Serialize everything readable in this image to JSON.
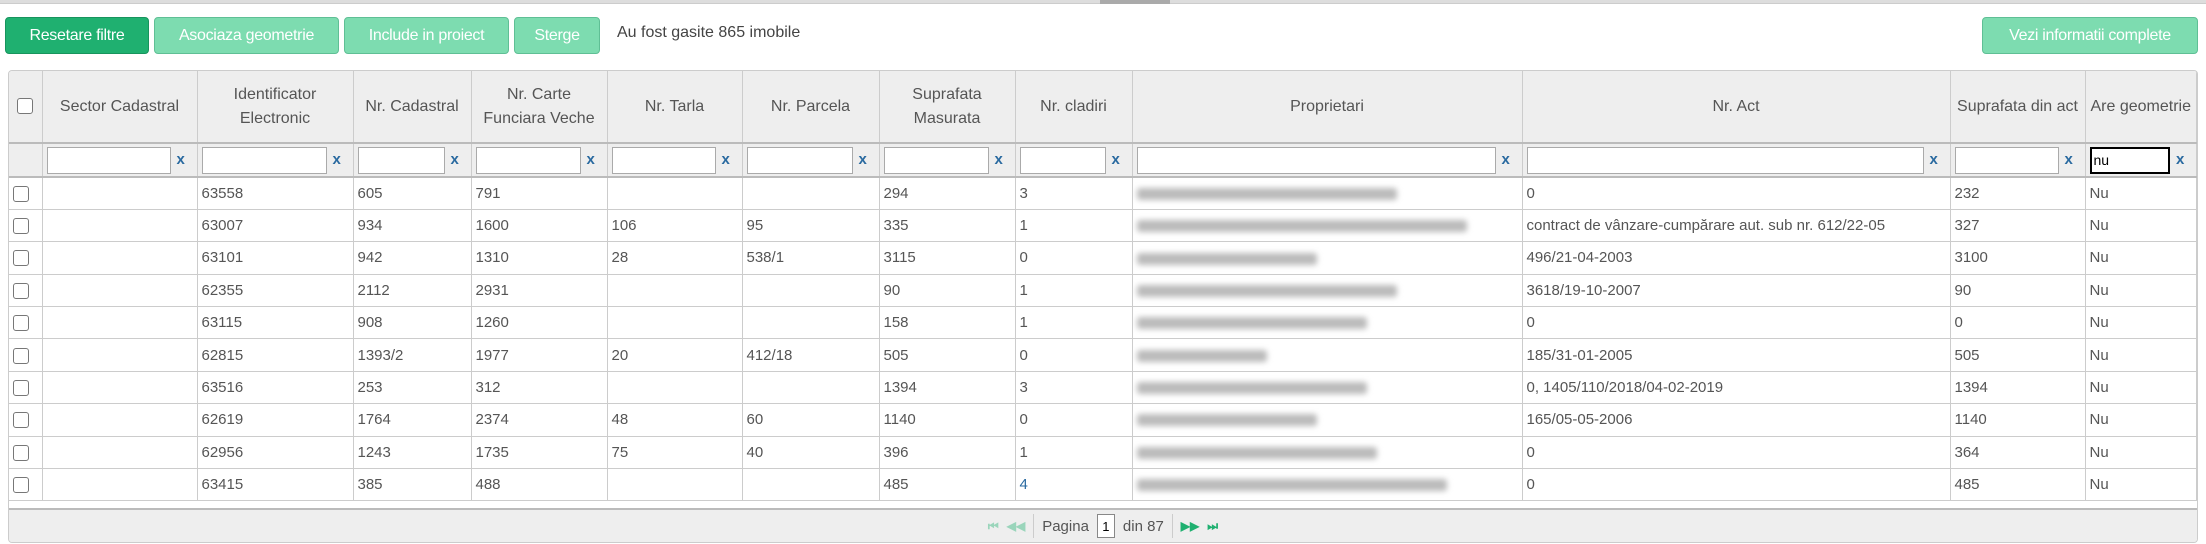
{
  "toolbar": {
    "reset": "Resetare filtre",
    "associate": "Asociaza geometrie",
    "include": "Include in proiect",
    "delete": "Sterge",
    "found": "Au fost gasite 865 imobile",
    "details": "Vezi informatii complete"
  },
  "columns": [
    "Sector Cadastral",
    "Identificator Electronic",
    "Nr. Cadastral",
    "Nr. Carte Funciara Veche",
    "Nr. Tarla",
    "Nr. Parcela",
    "Suprafata Masurata",
    "Nr. cladiri",
    "Proprietari",
    "Nr. Act",
    "Suprafata din act",
    "Are geometrie"
  ],
  "filters": {
    "clear": "x",
    "are_geometrie": "nu"
  },
  "rows": [
    [
      "",
      "63558",
      "605",
      "791",
      "",
      "",
      "294",
      "3",
      "",
      "0",
      "232",
      "Nu"
    ],
    [
      "",
      "63007",
      "934",
      "1600",
      "106",
      "95",
      "335",
      "1",
      "",
      "contract de vânzare-cumpărare aut. sub nr. 612/22-05",
      "327",
      "Nu"
    ],
    [
      "",
      "63101",
      "942",
      "1310",
      "28",
      "538/1",
      "3115",
      "0",
      "",
      "496/21-04-2003",
      "3100",
      "Nu"
    ],
    [
      "",
      "62355",
      "2112",
      "2931",
      "",
      "",
      "90",
      "1",
      "",
      "3618/19-10-2007",
      "90",
      "Nu"
    ],
    [
      "",
      "63115",
      "908",
      "1260",
      "",
      "",
      "158",
      "1",
      "",
      "0",
      "0",
      "Nu"
    ],
    [
      "",
      "62815",
      "1393/2",
      "1977",
      "20",
      "412/18",
      "505",
      "0",
      "",
      "185/31-01-2005",
      "505",
      "Nu"
    ],
    [
      "",
      "63516",
      "253",
      "312",
      "",
      "",
      "1394",
      "3",
      "",
      "0, 1405/110/2018/04-02-2019",
      "1394",
      "Nu"
    ],
    [
      "",
      "62619",
      "1764",
      "2374",
      "48",
      "60",
      "1140",
      "0",
      "",
      "165/05-05-2006",
      "1140",
      "Nu"
    ],
    [
      "",
      "62956",
      "1243",
      "1735",
      "75",
      "40",
      "396",
      "1",
      "",
      "0",
      "364",
      "Nu"
    ],
    [
      "",
      "63415",
      "385",
      "488",
      "",
      "",
      "485",
      "4",
      "",
      "0",
      "485",
      "Nu"
    ]
  ],
  "pager": {
    "label": "Pagina",
    "page": "1",
    "of": "din 87"
  },
  "colors": {
    "primary": "#1fb070",
    "secondary": "#7ddcb0"
  }
}
